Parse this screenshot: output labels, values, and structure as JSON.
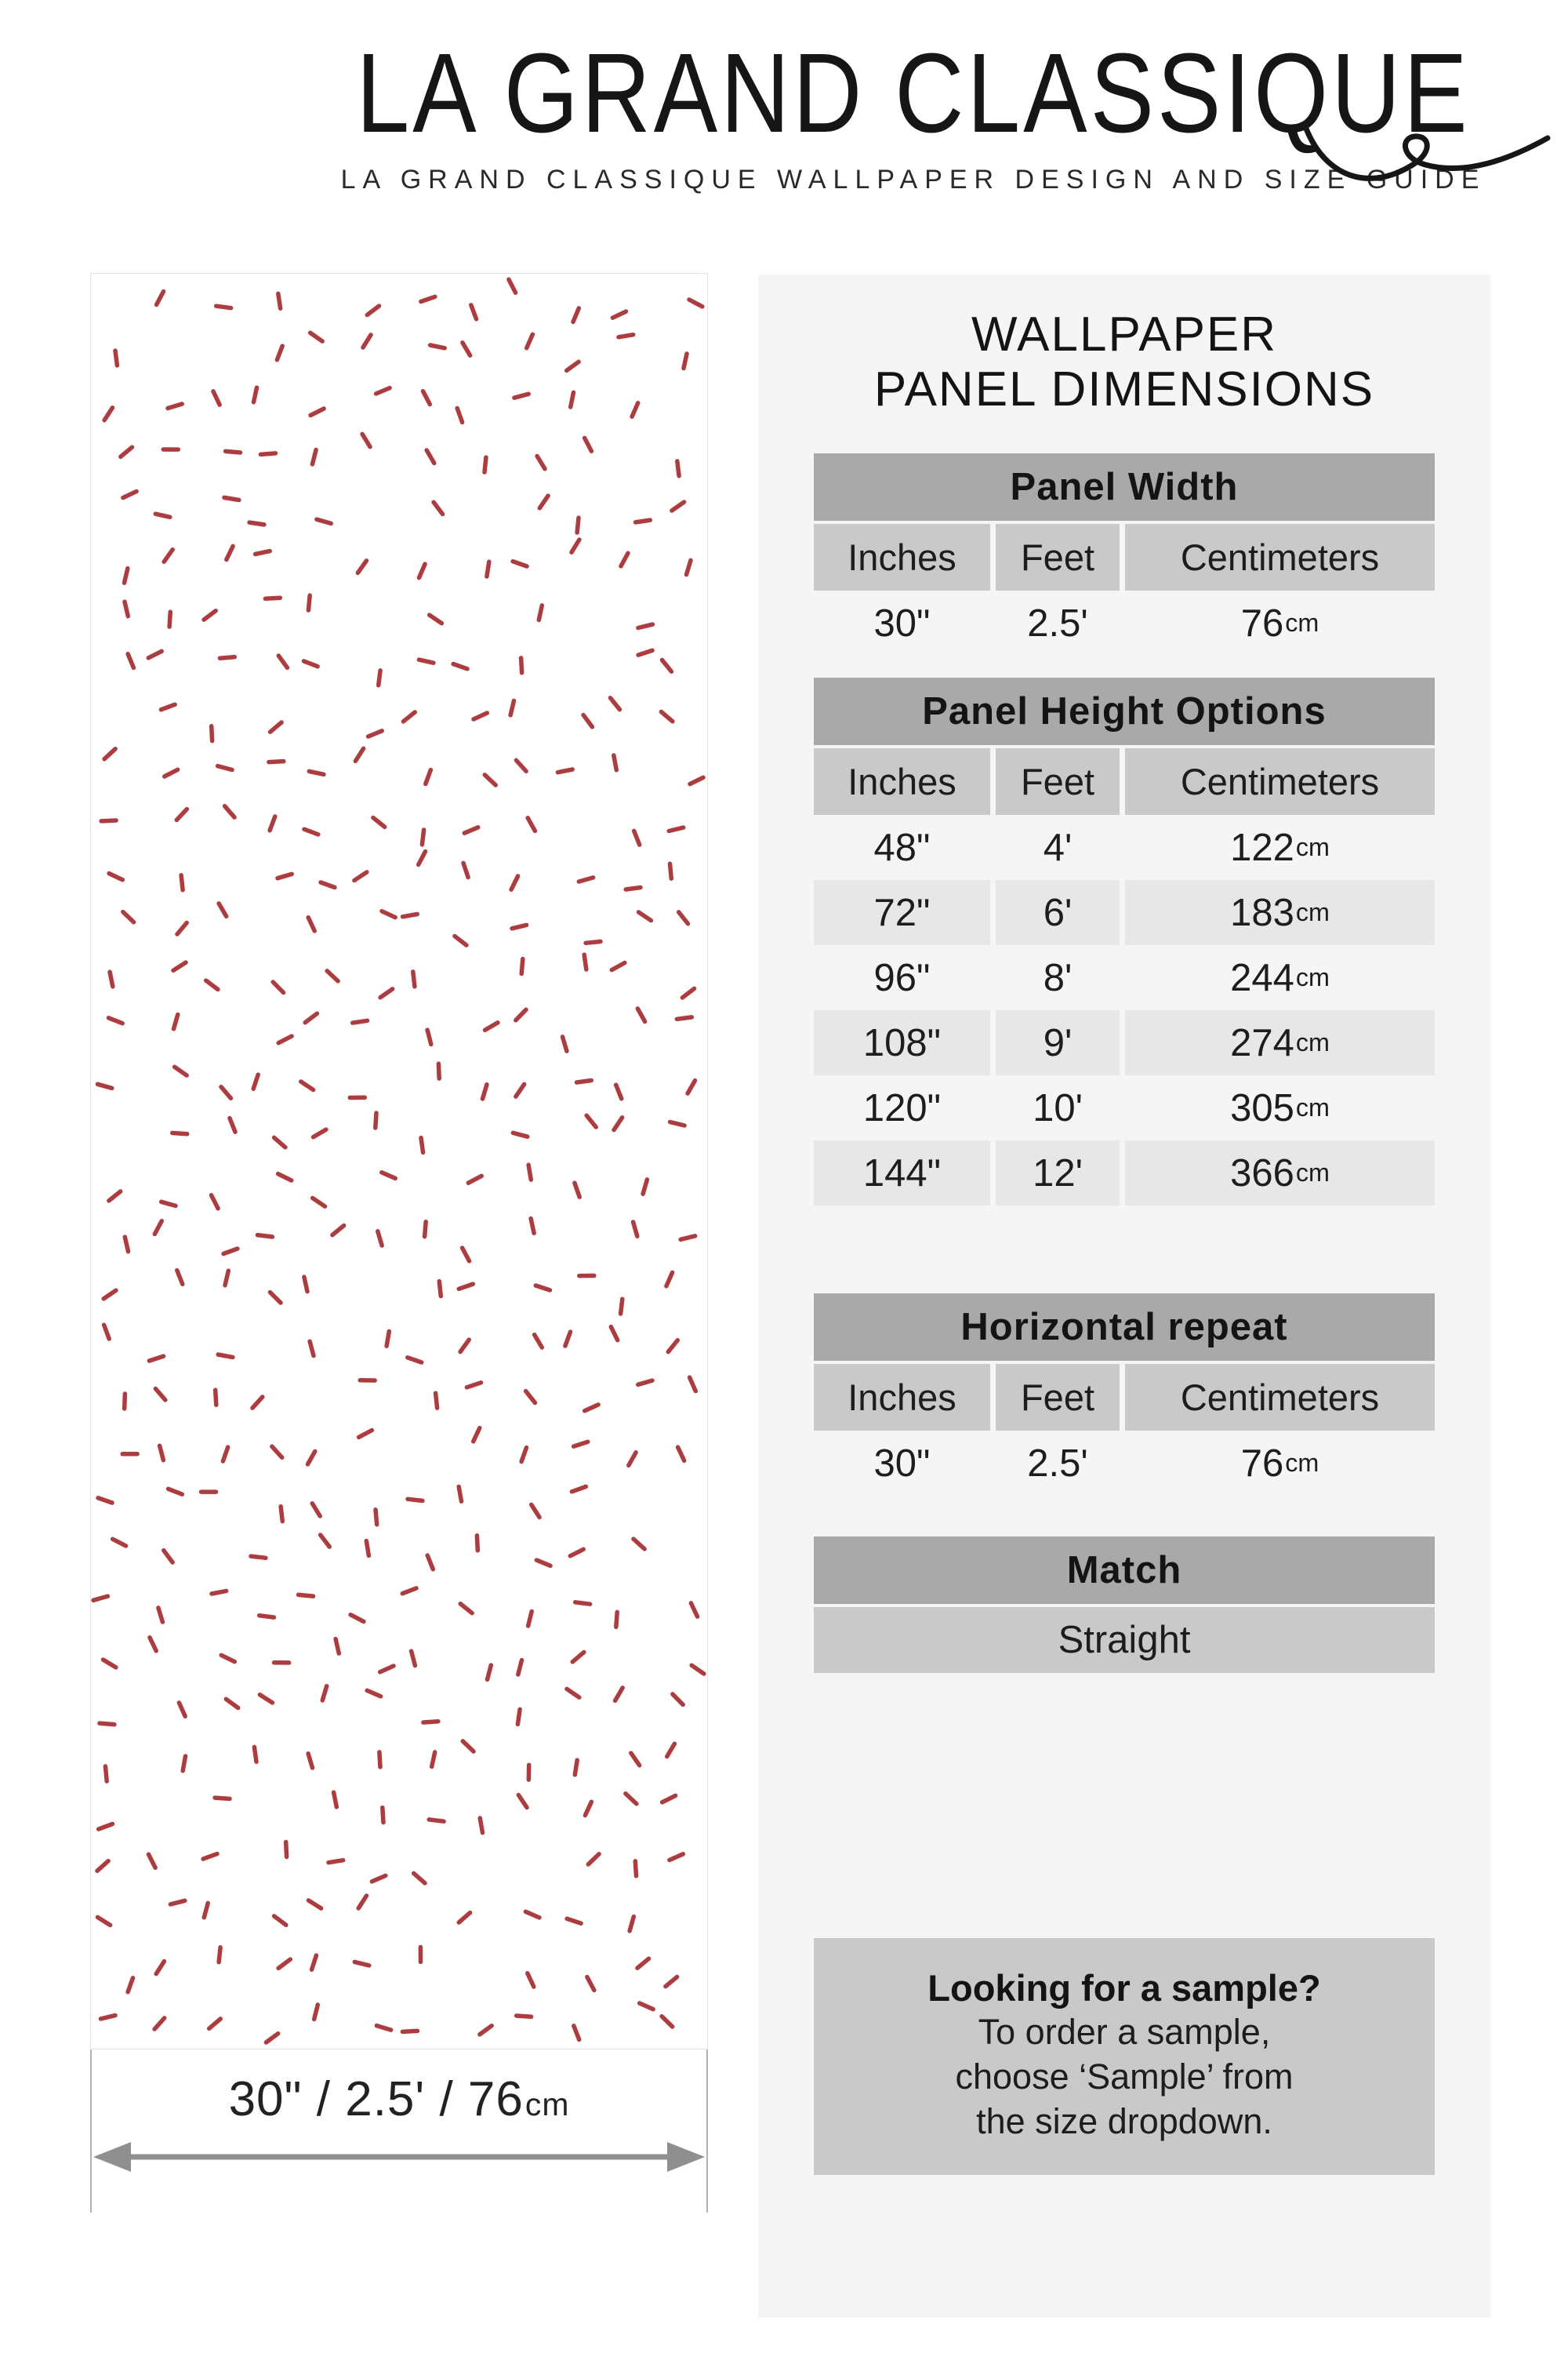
{
  "header": {
    "title": "LA GRAND CLASSIQUE",
    "subtitle": "LA GRAND CLASSIQUE WALLPAPER DESIGN AND SIZE GUIDE"
  },
  "preview": {
    "dash_color": "#b23a3d",
    "width_label": "30\" / 2.5' / 76",
    "width_label_unit": "cm"
  },
  "dimensions": {
    "heading_line1": "WALLPAPER",
    "heading_line2": "PANEL DIMENSIONS",
    "cm_unit": "cm",
    "panel_width": {
      "title": "Panel Width",
      "columns": [
        "Inches",
        "Feet",
        "Centimeters"
      ],
      "row": {
        "inches": "30\"",
        "feet": "2.5'",
        "cm": "76"
      }
    },
    "panel_height": {
      "title": "Panel Height Options",
      "columns": [
        "Inches",
        "Feet",
        "Centimeters"
      ],
      "rows": [
        {
          "inches": "48\"",
          "feet": "4'",
          "cm": "122"
        },
        {
          "inches": "72\"",
          "feet": "6'",
          "cm": "183"
        },
        {
          "inches": "96\"",
          "feet": "8'",
          "cm": "244"
        },
        {
          "inches": "108\"",
          "feet": "9'",
          "cm": "274"
        },
        {
          "inches": "120\"",
          "feet": "10'",
          "cm": "305"
        },
        {
          "inches": "144\"",
          "feet": "12'",
          "cm": "366"
        }
      ]
    },
    "horizontal_repeat": {
      "title": "Horizontal repeat",
      "columns": [
        "Inches",
        "Feet",
        "Centimeters"
      ],
      "row": {
        "inches": "30\"",
        "feet": "2.5'",
        "cm": "76"
      }
    },
    "match": {
      "title": "Match",
      "value": "Straight"
    },
    "sample": {
      "title": "Looking for a sample?",
      "line1": "To order a sample,",
      "line2": "choose ‘Sample’ from",
      "line3": "the size dropdown."
    }
  }
}
